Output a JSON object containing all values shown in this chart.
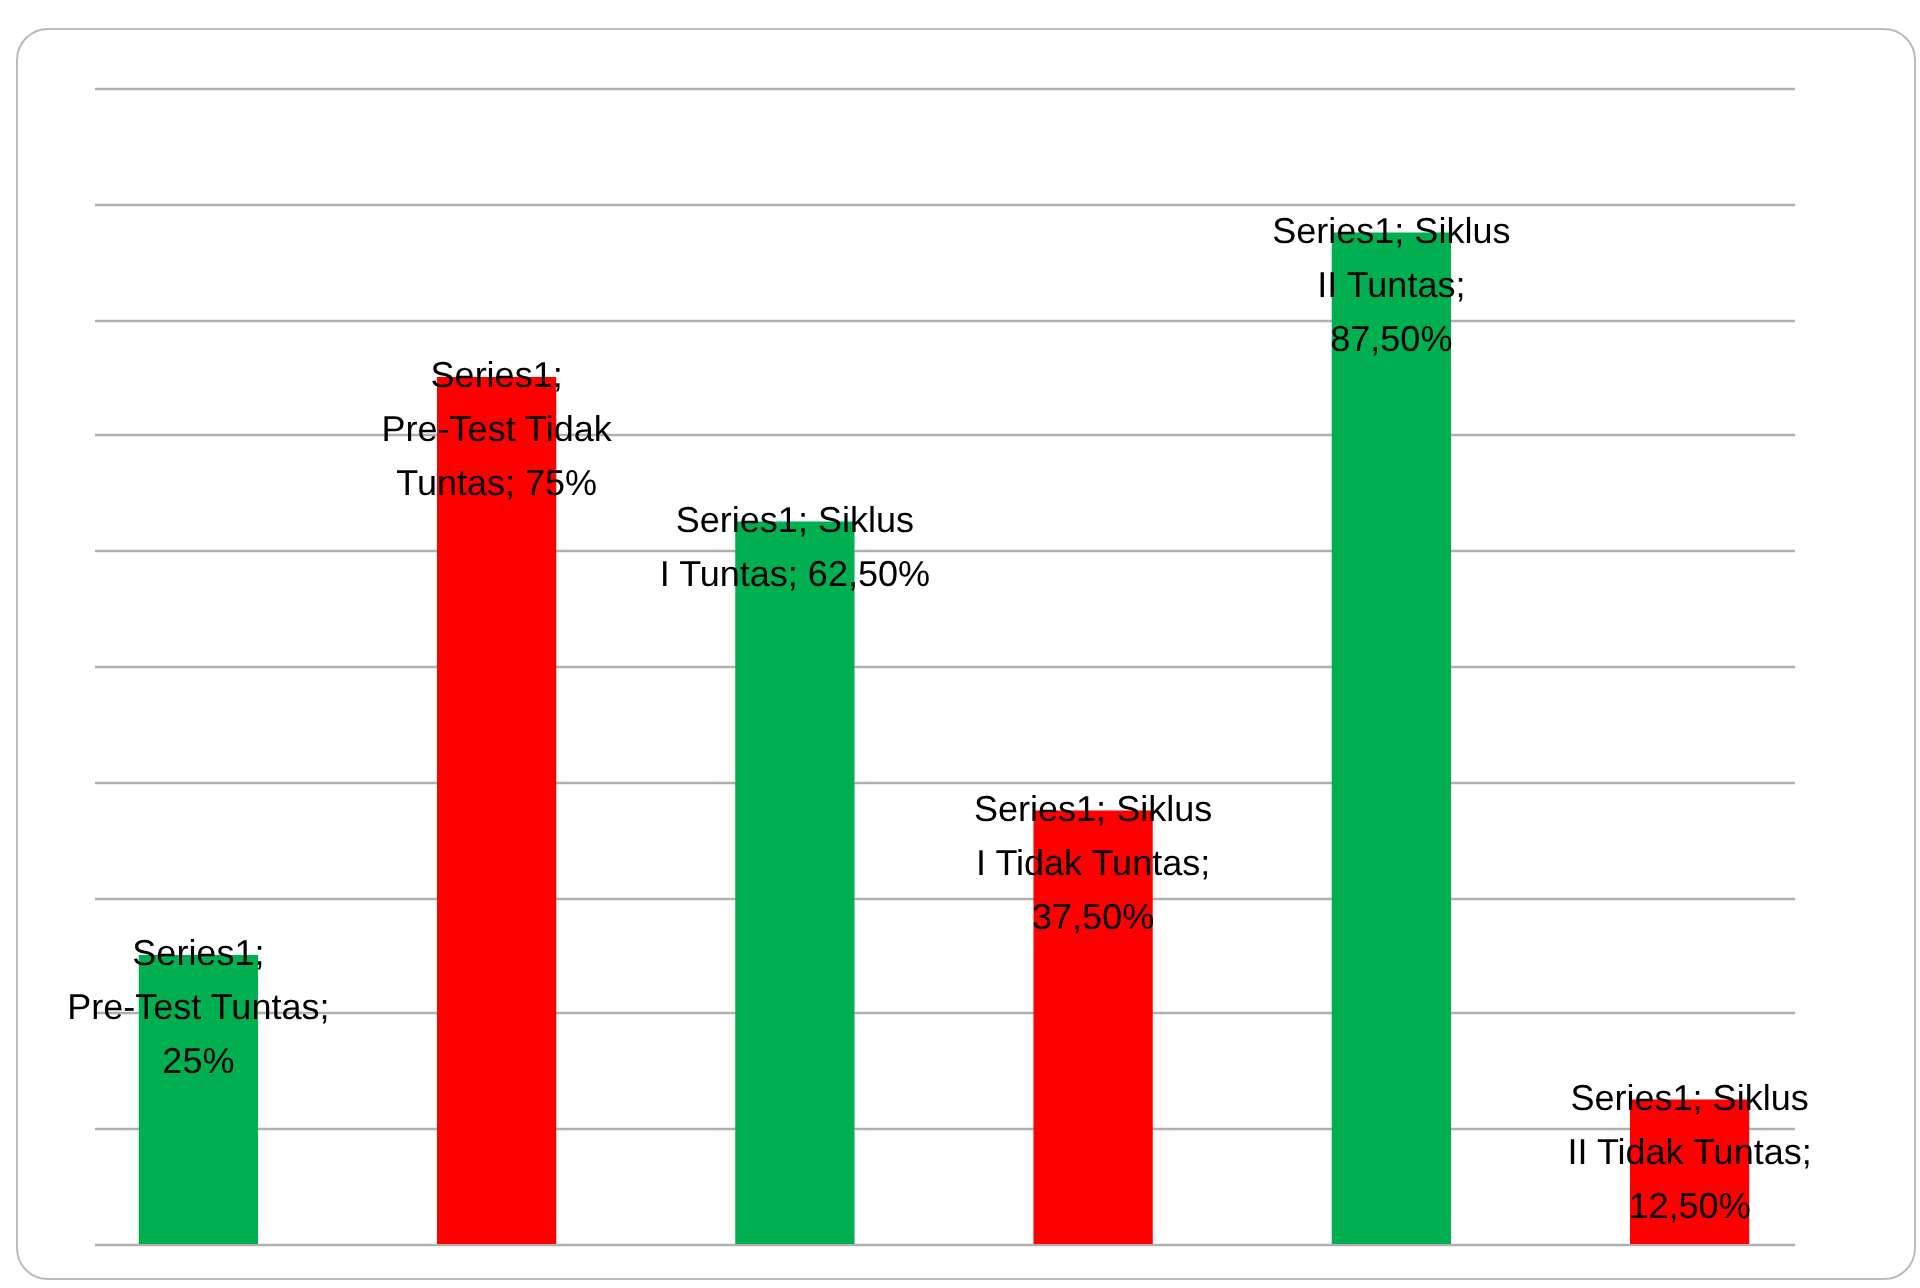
{
  "chart_data": {
    "type": "bar",
    "categories": [
      null,
      null,
      null,
      null,
      null,
      null
    ],
    "values": [
      25,
      75,
      62.5,
      37.5,
      87.5,
      12.5
    ],
    "colors": [
      "#00b050",
      "#ff0000",
      "#00b050",
      "#ff0000",
      "#00b050",
      "#ff0000"
    ],
    "value_labels": [
      "Series1; Pre-Test Tuntas; 25%",
      "Series1; Pre-Test Tidak Tuntas; 75%",
      "Series1; Siklus I Tuntas; 62,50%",
      "Series1; Siklus I Tidak Tuntas; 37,50%",
      "Series1; Siklus II Tuntas; 87,50%",
      "Series1; Siklus II Tidak Tuntas; 12,50%"
    ],
    "ylim": [
      0,
      100
    ],
    "yticks": [
      {
        "value": 0,
        "label": null
      },
      {
        "value": 10,
        "label": null
      },
      {
        "value": 20,
        "label": null
      },
      {
        "value": 30,
        "label": null
      },
      {
        "value": 40,
        "label": null
      },
      {
        "value": 50,
        "label": null
      },
      {
        "value": 60,
        "label": null
      },
      {
        "value": 70,
        "label": null
      },
      {
        "value": 80,
        "label": null
      },
      {
        "value": 90,
        "label": null
      },
      {
        "value": 100,
        "label": null
      }
    ],
    "grid": true,
    "tick_labels": false
  }
}
